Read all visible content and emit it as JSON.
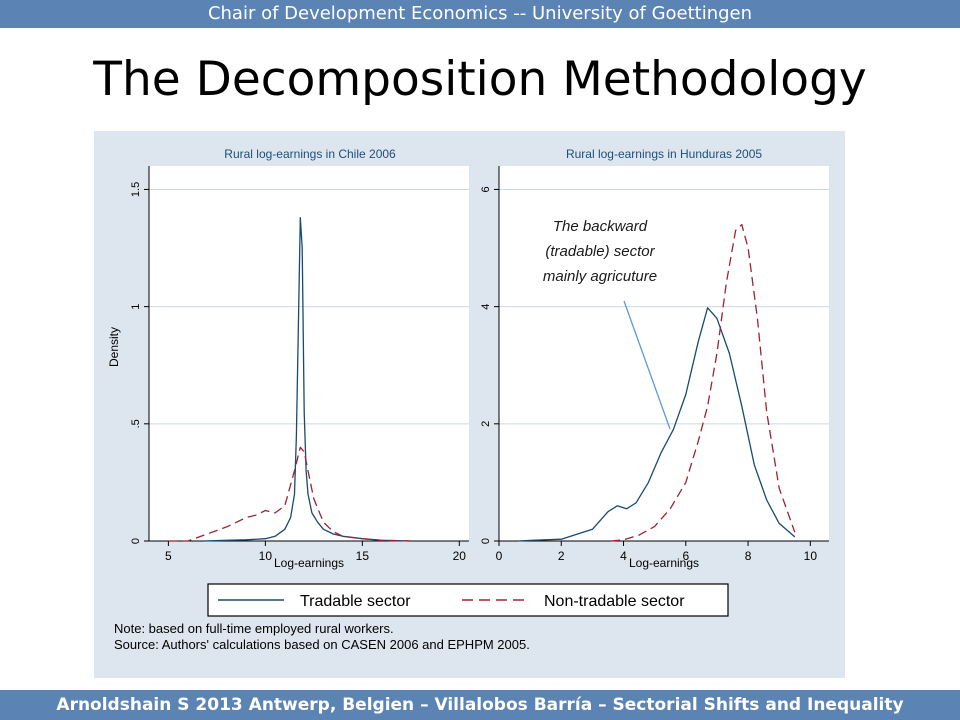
{
  "header": {
    "text": "Chair of Development Economics -- University of Goettingen"
  },
  "slide": {
    "title": "The Decomposition Methodology"
  },
  "footer": {
    "text": "Arnoldshain S 2013 Antwerp, Belgien – Villalobos Barría – Sectorial Shifts and Inequality"
  },
  "colors": {
    "bar": "#5b84b4",
    "panel_bg": "#dde6ee",
    "plot_bg": "#ffffff",
    "title_text": "#1f4e79",
    "tradable": "#1a4a6e",
    "non_tradable": "#9b2233",
    "gridline": "#c9d6e3",
    "annotation_line": "#5b9bd5"
  },
  "chart_data": [
    {
      "type": "line",
      "title": "Rural log-earnings in Chile 2006",
      "xlabel": "Log-earnings",
      "ylabel": "Density",
      "xlim": [
        4,
        20.5
      ],
      "ylim": [
        0,
        1.6
      ],
      "xticks": [
        5,
        10,
        15,
        20
      ],
      "yticks": [
        0,
        0.5,
        1,
        1.5
      ],
      "ytick_labels": [
        "0",
        ".5",
        "1",
        "1.5"
      ],
      "grid": true,
      "series": [
        {
          "name": "Tradable sector",
          "style": "solid",
          "x": [
            6.8,
            8.0,
            9.0,
            10.0,
            10.5,
            11.0,
            11.3,
            11.5,
            11.6,
            11.7,
            11.8,
            11.9,
            12.0,
            12.1,
            12.2,
            12.4,
            12.7,
            13.0,
            13.5,
            14.0,
            15.0,
            16.0,
            17.5
          ],
          "y": [
            0.0,
            0.003,
            0.005,
            0.01,
            0.02,
            0.05,
            0.1,
            0.2,
            0.45,
            0.9,
            1.38,
            1.25,
            0.55,
            0.3,
            0.2,
            0.12,
            0.08,
            0.05,
            0.03,
            0.02,
            0.01,
            0.003,
            0.0
          ]
        },
        {
          "name": "Non-tradable sector",
          "style": "dashed",
          "x": [
            5.0,
            6.0,
            7.0,
            8.0,
            8.5,
            9.0,
            9.5,
            10.0,
            10.5,
            11.0,
            11.5,
            11.8,
            12.0,
            12.2,
            12.5,
            13.0,
            13.5,
            14.0,
            15.0,
            16.0,
            17.5
          ],
          "y": [
            0.0,
            0.0,
            0.03,
            0.06,
            0.08,
            0.1,
            0.11,
            0.13,
            0.12,
            0.15,
            0.3,
            0.4,
            0.38,
            0.3,
            0.18,
            0.08,
            0.04,
            0.02,
            0.01,
            0.003,
            0.0
          ]
        }
      ]
    },
    {
      "type": "line",
      "title": "Rural log-earnings in Hunduras 2005",
      "xlabel": "Log-earnings",
      "ylabel": "",
      "xlim": [
        0,
        10.6
      ],
      "ylim": [
        0,
        6.4
      ],
      "xticks": [
        0,
        2,
        4,
        6,
        8,
        10
      ],
      "yticks": [
        0,
        2,
        4,
        6
      ],
      "ytick_labels": [
        "0",
        "2",
        "4",
        "6"
      ],
      "grid": true,
      "series": [
        {
          "name": "Tradable sector",
          "style": "solid",
          "x": [
            0.6,
            1.0,
            2.0,
            3.0,
            3.5,
            3.8,
            4.1,
            4.4,
            4.8,
            5.2,
            5.6,
            6.0,
            6.4,
            6.7,
            7.0,
            7.4,
            7.8,
            8.2,
            8.6,
            9.0,
            9.5
          ],
          "y": [
            0.0,
            0.01,
            0.03,
            0.2,
            0.5,
            0.6,
            0.55,
            0.65,
            1.0,
            1.5,
            1.9,
            2.5,
            3.4,
            3.98,
            3.8,
            3.2,
            2.3,
            1.3,
            0.7,
            0.3,
            0.07
          ]
        },
        {
          "name": "Non-tradable sector",
          "style": "dashed",
          "x": [
            3.6,
            4.0,
            4.5,
            5.0,
            5.5,
            6.0,
            6.4,
            6.7,
            7.0,
            7.3,
            7.6,
            7.8,
            8.0,
            8.3,
            8.6,
            9.0,
            9.5
          ],
          "y": [
            0.0,
            0.02,
            0.1,
            0.25,
            0.55,
            1.0,
            1.7,
            2.3,
            3.2,
            4.4,
            5.3,
            5.4,
            5.0,
            3.8,
            2.2,
            0.9,
            0.15
          ]
        }
      ],
      "annotation": {
        "lines": [
          "The backward",
          "(tradable) sector",
          "mainly agricuture"
        ]
      }
    }
  ],
  "legend": {
    "placement": "bottom",
    "items": [
      {
        "label": "Tradable sector",
        "style": "solid"
      },
      {
        "label": "Non-tradable sector",
        "style": "dashed"
      }
    ]
  },
  "note": {
    "line1": "Note: based on full-time employed rural workers.",
    "line2": "Source: Authors' calculations based on CASEN 2006 and EPHPM 2005."
  }
}
